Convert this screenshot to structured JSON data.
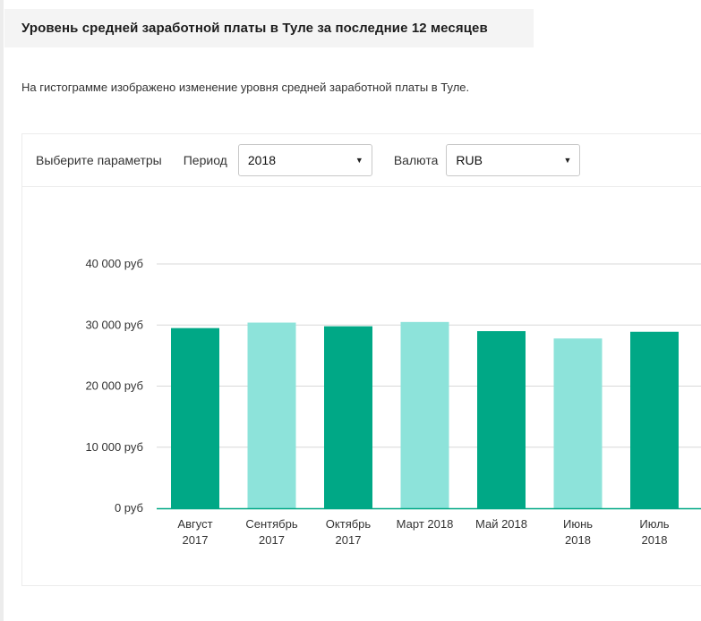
{
  "header": {
    "title": "Уровень средней заработной платы в Туле за последние 12 месяцев"
  },
  "description": "На гистограмме изображено изменение уровня средней заработной платы в Туле.",
  "controls": {
    "params_label": "Выберите параметры",
    "period_label": "Период",
    "period_value": "2018",
    "currency_label": "Валюта",
    "currency_value": "RUB",
    "arrow_glyph": "▼"
  },
  "chart_data": {
    "type": "bar",
    "categories": [
      [
        "Август",
        "2017"
      ],
      [
        "Сентябрь",
        "2017"
      ],
      [
        "Октябрь",
        "2017"
      ],
      [
        "Март 2018"
      ],
      [
        "Май 2018"
      ],
      [
        "Июнь",
        "2018"
      ],
      [
        "Июль",
        "2018"
      ]
    ],
    "values": [
      29500,
      30400,
      29800,
      30500,
      29000,
      27800,
      28900
    ],
    "y_ticks": [
      0,
      10000,
      20000,
      30000,
      40000
    ],
    "y_tick_labels": [
      "0 руб",
      "10 000 руб",
      "20 000 руб",
      "30 000 руб",
      "40 000 руб"
    ],
    "ylim": [
      0,
      40000
    ],
    "grid": true,
    "colors": [
      "#00a886",
      "#8de3da"
    ],
    "axis_color": "#00a886",
    "grid_color": "#d8d8d8"
  }
}
